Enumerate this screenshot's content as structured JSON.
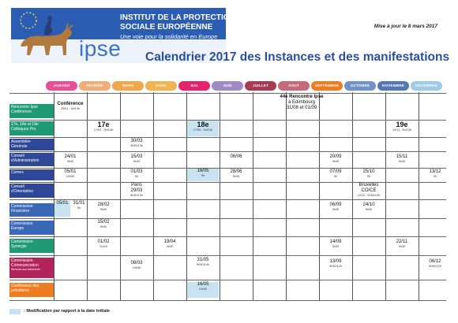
{
  "header": {
    "institute_line1": "INSTITUT DE LA PROTECTION",
    "institute_line2": "SOCIALE EUROPÉENNE",
    "tagline": "Une voie pour la solidarité en Europe",
    "logo_word": "ipse",
    "updated": "Mise à jour le 8 mars 2017",
    "title": "Calendrier 2017 des Instances et des manifestations"
  },
  "months": [
    {
      "name": "JANVIER",
      "color": "#e84f95"
    },
    {
      "name": "FEVRIER",
      "color": "#f2ac77"
    },
    {
      "name": "MARS",
      "color": "#f2a64a"
    },
    {
      "name": "AVRIL",
      "color": "#f0b450"
    },
    {
      "name": "MAI",
      "color": "#e7226f"
    },
    {
      "name": "JUIN",
      "color": "#a089c4"
    },
    {
      "name": "JUILLET",
      "color": "#a83a52"
    },
    {
      "name": "AOUT",
      "color": "#c66a7a"
    },
    {
      "name": "SEPTEMBRE",
      "color": "#ee7d22"
    },
    {
      "name": "OCTOBRE",
      "color": "#6e92c9"
    },
    {
      "name": "NOVEMBRE",
      "color": "#5577b7"
    },
    {
      "name": "DECEMBRE",
      "color": "#9fcbea"
    }
  ],
  "rows": [
    {
      "label": [
        "Rencontre Ipse",
        "Conférence"
      ],
      "color": "#1f9a75"
    },
    {
      "label": [
        "17e, 18e et 19e",
        "Colloques Pro"
      ],
      "color": "#1f9a75"
    },
    {
      "label": [
        "Assemblée",
        "Générale"
      ],
      "color": "#2e4796"
    },
    {
      "label": [
        "Conseil",
        "d'Administration"
      ],
      "color": "#2e4796"
    },
    {
      "label": [
        "Comex"
      ],
      "color": "#2e4796"
    },
    {
      "label": [
        "Conseil",
        "d'Orientation"
      ],
      "color": "#2e4796"
    },
    {
      "label": [
        "Commission",
        "Financière"
      ],
      "color": "#3a68b7"
    },
    {
      "label": [
        "Commission",
        "Europe"
      ],
      "color": "#3a68b7"
    },
    {
      "label": [
        "Commission",
        "Synergie"
      ],
      "color": "#1f9a75"
    },
    {
      "label": [
        "Commission",
        "Communication"
      ],
      "sub": "Services aux Adhérents",
      "color": "#b3245a"
    },
    {
      "label": [
        "Conférence des",
        "présidents"
      ],
      "color": "#ee7d22"
    }
  ],
  "events": {
    "conf_label": "Conférence",
    "conf_date": "25/01 . 9h/13h",
    "rencontre_title": "44e Rencontre Ipse",
    "rencontre_place": "à Edimbourg",
    "rencontre_dates": "31/08 et 01/09",
    "coll17_num": "17e",
    "coll17_date": "17/02 . 9h/13h",
    "coll18_num": "18e",
    "coll18_date": "17/05 . 9h/13h",
    "coll19_num": "19e",
    "coll19_date": "10/11 . 9h/13h",
    "ag_date": "30/03",
    "ag_time": "9h30/13h",
    "ca_jan_d": "24/01",
    "ca_jan_t": "9h30",
    "ca_mar_d": "15/03",
    "ca_mar_t": "9h30",
    "ca_jun_d": "06/06",
    "ca_sep_d": "20/09",
    "ca_sep_t": "9h30",
    "ca_nov_d": "15/11",
    "ca_nov_t": "9h30",
    "cx_jan_d": "05/01",
    "cx_jan_t": "10h30",
    "cx_mar_d": "01/03",
    "cx_mar_t": "9h",
    "cx_may_d": "16/05",
    "cx_may_t": "9h",
    "cx_jun_d": "28/06",
    "cx_jun_t": "9h30",
    "cx_sep_d": "07/09",
    "cx_sep_t": "9h",
    "cx_oct_d": "25/10",
    "cx_oct_t": "9h",
    "cx_dec_d": "13/12",
    "cx_dec_t": "9h",
    "co_mar_place": "Paris",
    "co_mar_d": "29/03",
    "co_mar_t": "9h30/13h",
    "co_oct_l1": "Bruxelles",
    "co_oct_l2": "CO/CE",
    "co_oct_l3": "19/10 . 9h30/13h",
    "fi_jan1": "05/01",
    "fi_jan2": "31/01",
    "fi_jan2_t": "9h",
    "fi_feb_d": "28/02",
    "fi_feb_t": "9h30",
    "fi_sep_d": "06/09",
    "fi_sep_t": "9h30",
    "fi_oct_d": "24/10",
    "fi_oct_t": "9h30",
    "eu_feb_d": "15/02",
    "eu_feb_t": "9h30",
    "sy_feb_d": "01/02",
    "sy_feb_t": "11h15",
    "sy_apr_d": "19/04",
    "sy_apr_t": "9h30",
    "sy_sep_d": "14/09",
    "sy_sep_t": "9h30",
    "sy_nov_d": "22/11",
    "sy_nov_t": "9h30",
    "cm_mar_d": "08/03",
    "cm_mar_t": "10h30",
    "cm_may_d": "31/05",
    "cm_may_t": "9h30/14h",
    "cm_sep_d": "13/09",
    "cm_sep_t": "9h30/12h",
    "cm_dec_d": "06/12",
    "cm_dec_t": "9h30/12h",
    "cp_may_d": "16/05",
    "cp_may_t": "10h30"
  },
  "legend": {
    "text": ": Modification par rapport à la date initiale",
    "color": "#c7e3f2"
  }
}
